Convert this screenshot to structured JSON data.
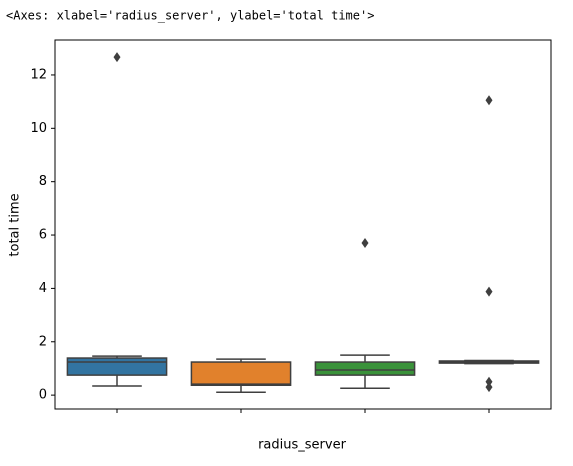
{
  "output_text": "<Axes: xlabel='radius_server', ylabel='total time'>",
  "chart_data": {
    "type": "box",
    "xlabel": "radius_server",
    "ylabel": "total time",
    "categories": [
      null,
      null,
      null,
      null
    ],
    "boxes": [
      {
        "color": "#3274a1",
        "whislo": 0.34,
        "q1": 0.75,
        "med": 1.24,
        "q3": 1.39,
        "whishi": 1.46,
        "fliers": [
          12.67
        ]
      },
      {
        "color": "#e1812c",
        "whislo": 0.11,
        "q1": 0.37,
        "med": 0.41,
        "q3": 1.24,
        "whishi": 1.35,
        "fliers": []
      },
      {
        "color": "#3a923a",
        "whislo": 0.26,
        "q1": 0.75,
        "med": 0.94,
        "q3": 1.24,
        "whishi": 1.5,
        "fliers": [
          5.7
        ]
      },
      {
        "color": "#c03d3e",
        "whislo": 1.18,
        "q1": 1.2,
        "med": 1.24,
        "q3": 1.28,
        "whishi": 1.3,
        "fliers": [
          11.05,
          3.88,
          0.5,
          0.3
        ]
      }
    ],
    "ylim": [
      -0.52,
      13.31
    ],
    "yticks": [
      0,
      2,
      4,
      6,
      8,
      10,
      12
    ]
  }
}
